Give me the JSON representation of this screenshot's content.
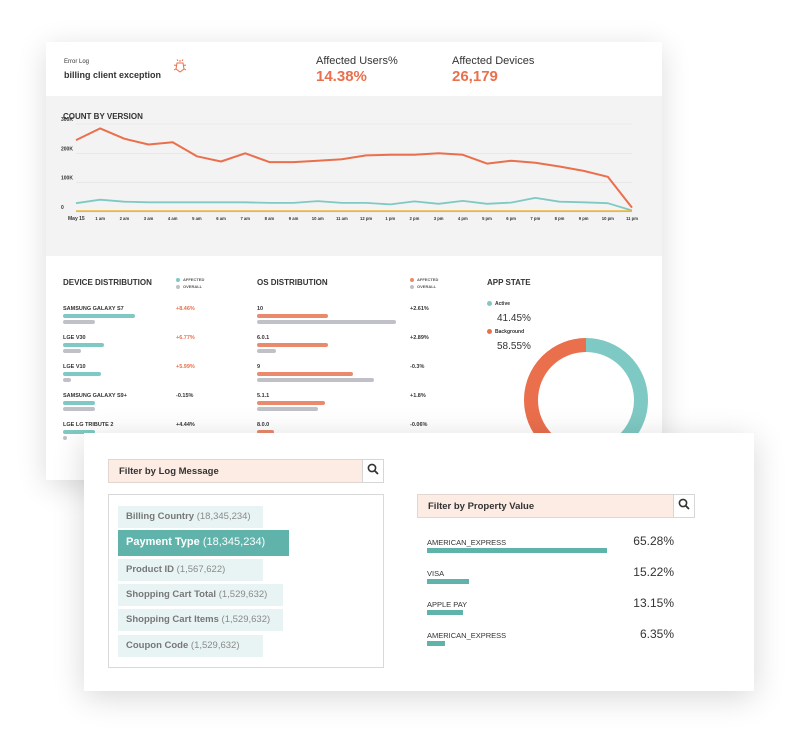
{
  "header": {
    "error_log_label": "Error Log",
    "error_title": "billing client exception",
    "affected_users_label": "Affected Users%",
    "affected_users_value": "14.38%",
    "affected_devices_label": "Affected Devices",
    "affected_devices_value": "26,179",
    "icons": {
      "bug": "bug-icon"
    }
  },
  "count_by_version": {
    "title": "COUNT BY VERSION"
  },
  "chart_data": {
    "type": "line",
    "title": "COUNT BY VERSION",
    "x": [
      "May 15",
      "1 am",
      "2 am",
      "3 am",
      "4 am",
      "5 am",
      "6 am",
      "7 am",
      "8 am",
      "9 am",
      "10 am",
      "11 am",
      "12 pm",
      "1 pm",
      "2 pm",
      "3 pm",
      "4 pm",
      "5 pm",
      "6 pm",
      "7 pm",
      "8 pm",
      "9 pm",
      "10 pm",
      "11 pm"
    ],
    "y_ticks": [
      "0",
      "100K",
      "200K",
      "300K"
    ],
    "ylim": [
      0,
      300000
    ],
    "grid": true,
    "series": [
      {
        "color": "#ea6f4c",
        "values": [
          245000,
          285000,
          250000,
          230000,
          238000,
          190000,
          172000,
          200000,
          170000,
          170000,
          175000,
          180000,
          193000,
          195000,
          195000,
          200000,
          195000,
          165000,
          175000,
          168000,
          155000,
          140000,
          120000,
          15000
        ]
      },
      {
        "color": "#7fc9c4",
        "values": [
          30000,
          42000,
          35000,
          33000,
          33000,
          33000,
          33000,
          33000,
          31000,
          31000,
          37000,
          31000,
          31000,
          26000,
          36000,
          28000,
          38000,
          28000,
          32000,
          48000,
          35000,
          33000,
          30000,
          5000
        ]
      },
      {
        "color": "#f2b53a",
        "values": [
          3000,
          3000,
          3000,
          3000,
          3000,
          3000,
          3000,
          3000,
          3000,
          3000,
          3000,
          3000,
          3000,
          3000,
          3000,
          3000,
          3000,
          3000,
          3000,
          3000,
          3000,
          3000,
          3000,
          3000
        ]
      }
    ]
  },
  "device_distribution": {
    "title": "DEVICE DISTRIBUTION",
    "legend": [
      "AFFECTED",
      "OVERALL"
    ],
    "colors": {
      "affected": "#7fc9c4",
      "overall": "#c0c0c8",
      "positive": "#ea6f4c",
      "neutral": "#333333"
    },
    "rows": [
      {
        "label": "SAMSUNG GALAXY S7",
        "pct": "+8.46%",
        "affected": 0.64,
        "overall": 0.29,
        "positive": true
      },
      {
        "label": "LGE V30",
        "pct": "+6.77%",
        "affected": 0.37,
        "overall": 0.16,
        "positive": true
      },
      {
        "label": "LGE V10",
        "pct": "+5.99%",
        "affected": 0.34,
        "overall": 0.07,
        "positive": true
      },
      {
        "label": "SAMSUNG GALAXY S9+",
        "pct": "-0.15%",
        "affected": 0.29,
        "overall": 0.29,
        "positive": false
      },
      {
        "label": "LGE LG TRIBUTE 2",
        "pct": "+4.44%",
        "affected": 0.29,
        "overall": 0.04,
        "positive": false
      }
    ]
  },
  "os_distribution": {
    "title": "OS DISTRIBUTION",
    "legend": [
      "AFFECTED",
      "OVERALL"
    ],
    "colors": {
      "affected": "#ea8a6d",
      "overall": "#c0c0c8"
    },
    "rows": [
      {
        "label": "10",
        "pct": "+2.61%",
        "affected": 0.51,
        "overall": 1.0
      },
      {
        "label": "6.0.1",
        "pct": "+2.89%",
        "affected": 0.51,
        "overall": 0.14
      },
      {
        "label": "9",
        "pct": "-0.3%",
        "affected": 0.69,
        "overall": 0.84
      },
      {
        "label": "5.1.1",
        "pct": "+1.8%",
        "affected": 0.49,
        "overall": 0.44
      },
      {
        "label": "8.0.0",
        "pct": "-0.06%",
        "affected": 0.12,
        "overall": 0.12
      }
    ]
  },
  "app_state": {
    "title": "APP STATE",
    "items": [
      {
        "label": "Active",
        "value": "41.45%",
        "fraction": 0.4145,
        "color": "#7fc9c4"
      },
      {
        "label": "Background",
        "value": "58.55%",
        "fraction": 0.5855,
        "color": "#ea6f4c"
      }
    ]
  },
  "log_filter": {
    "placeholder": "Filter by Log Message",
    "icon": "search-icon",
    "items": [
      {
        "name": "Billing Country",
        "count": "(18,345,234)",
        "selected": false
      },
      {
        "name": "Payment Type",
        "count": "(18,345,234)",
        "selected": true
      },
      {
        "name": "Product ID",
        "count": "(1,567,622)",
        "selected": false
      },
      {
        "name": "Shopping Cart Total",
        "count": "(1,529,632)",
        "selected": false
      },
      {
        "name": "Shopping Cart Items",
        "count": "(1,529,632)",
        "selected": false
      },
      {
        "name": "Coupon Code",
        "count": "(1,529,632)",
        "selected": false
      }
    ]
  },
  "property_filter": {
    "placeholder": "Filter by Property Value",
    "icon": "search-icon",
    "bar_color": "#5fb3ab",
    "rows": [
      {
        "label": "AMERICAN_EXPRESS",
        "pct": "65.28%",
        "fraction": 0.6528
      },
      {
        "label": "VISA",
        "pct": "15.22%",
        "fraction": 0.1522
      },
      {
        "label": "APPLE PAY",
        "pct": "13.15%",
        "fraction": 0.1315
      },
      {
        "label": "AMERICAN_EXPRESS",
        "pct": "6.35%",
        "fraction": 0.0635
      }
    ]
  }
}
